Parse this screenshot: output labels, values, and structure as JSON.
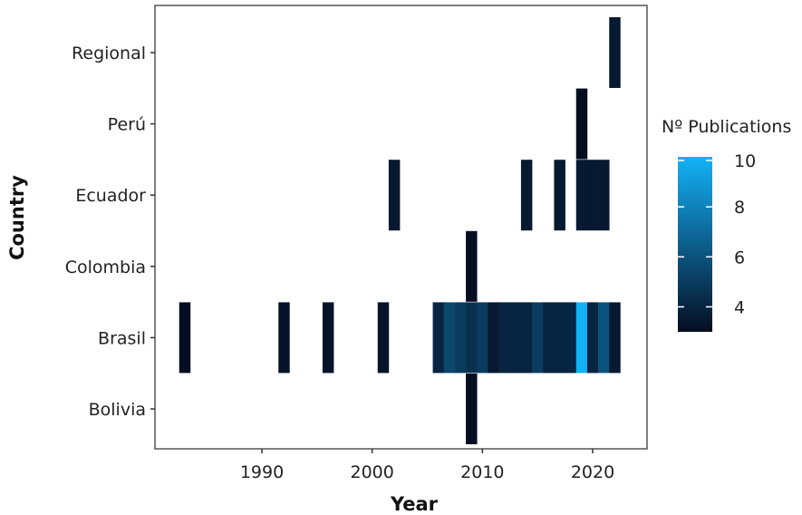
{
  "chart_data": {
    "type": "heatmap",
    "title": "",
    "xlabel": "Year",
    "ylabel": "Country",
    "xlim": [
      1981,
      2025
    ],
    "x_ticks": [
      "1990",
      "2000",
      "2010",
      "2020"
    ],
    "x_tick_values": [
      1990,
      2000,
      2010,
      2020
    ],
    "categories": [
      "Bolivia",
      "Brasil",
      "Colombia",
      "Ecuador",
      "Perú",
      "Regional"
    ],
    "legend": {
      "title": "Nº Publications",
      "min": 3,
      "max": 10,
      "ticks": [
        "4",
        "6",
        "8",
        "10"
      ],
      "tick_values": [
        4,
        6,
        8,
        10
      ],
      "color_low": "#050d21",
      "color_high": "#13b2f7",
      "placement": "right"
    },
    "grid": false,
    "cells": [
      {
        "country": "Bolivia",
        "year": 2009,
        "publications": 3
      },
      {
        "country": "Brasil",
        "year": 1983,
        "publications": 3
      },
      {
        "country": "Brasil",
        "year": 1992,
        "publications": 3.3
      },
      {
        "country": "Brasil",
        "year": 1996,
        "publications": 3.3
      },
      {
        "country": "Brasil",
        "year": 2001,
        "publications": 3.3
      },
      {
        "country": "Brasil",
        "year": 2006,
        "publications": 4
      },
      {
        "country": "Brasil",
        "year": 2007,
        "publications": 5.5
      },
      {
        "country": "Brasil",
        "year": 2008,
        "publications": 5
      },
      {
        "country": "Brasil",
        "year": 2009,
        "publications": 4.5
      },
      {
        "country": "Brasil",
        "year": 2010,
        "publications": 5
      },
      {
        "country": "Brasil",
        "year": 2011,
        "publications": 3.5
      },
      {
        "country": "Brasil",
        "year": 2012,
        "publications": 4
      },
      {
        "country": "Brasil",
        "year": 2013,
        "publications": 4
      },
      {
        "country": "Brasil",
        "year": 2014,
        "publications": 4
      },
      {
        "country": "Brasil",
        "year": 2015,
        "publications": 5
      },
      {
        "country": "Brasil",
        "year": 2016,
        "publications": 4
      },
      {
        "country": "Brasil",
        "year": 2017,
        "publications": 4
      },
      {
        "country": "Brasil",
        "year": 2018,
        "publications": 4
      },
      {
        "country": "Brasil",
        "year": 2019,
        "publications": 10
      },
      {
        "country": "Brasil",
        "year": 2020,
        "publications": 4
      },
      {
        "country": "Brasil",
        "year": 2021,
        "publications": 6
      },
      {
        "country": "Brasil",
        "year": 2022,
        "publications": 3.5
      },
      {
        "country": "Colombia",
        "year": 2009,
        "publications": 3
      },
      {
        "country": "Ecuador",
        "year": 2002,
        "publications": 3.5
      },
      {
        "country": "Ecuador",
        "year": 2014,
        "publications": 3.5
      },
      {
        "country": "Ecuador",
        "year": 2017,
        "publications": 3.5
      },
      {
        "country": "Ecuador",
        "year": 2019,
        "publications": 3.5
      },
      {
        "country": "Ecuador",
        "year": 2020,
        "publications": 3.5
      },
      {
        "country": "Ecuador",
        "year": 2021,
        "publications": 3.5
      },
      {
        "country": "Perú",
        "year": 2019,
        "publications": 3
      },
      {
        "country": "Regional",
        "year": 2022,
        "publications": 3.5
      }
    ]
  }
}
